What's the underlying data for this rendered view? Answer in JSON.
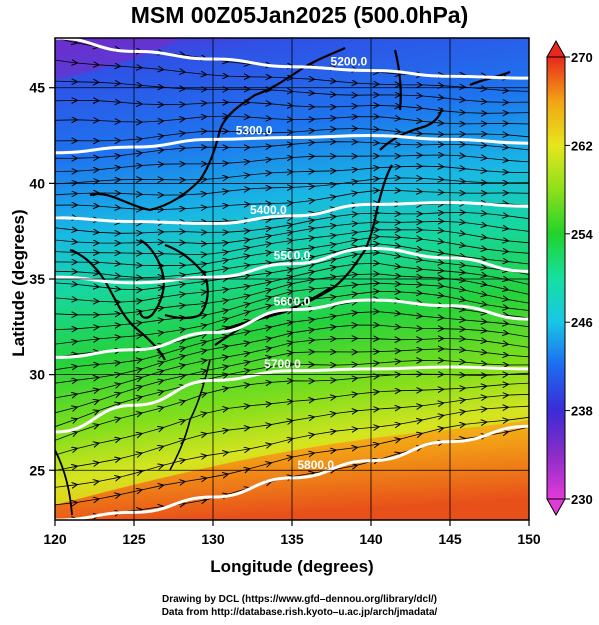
{
  "title": "MSM 00Z05Jan2025 (500.0hPa)",
  "xlabel": "Longitude (degrees)",
  "ylabel": "Latitude  (degrees)",
  "x_ticks": [
    120,
    125,
    130,
    135,
    140,
    145,
    150
  ],
  "y_ticks": [
    25,
    30,
    35,
    40,
    45
  ],
  "xlim": [
    120,
    150
  ],
  "ylim": [
    22.4,
    47.6
  ],
  "colorbar": {
    "ticks": [
      230,
      238,
      246,
      254,
      262,
      270
    ],
    "range": [
      230,
      270
    ],
    "colors": [
      "#e23ad8",
      "#8b2cc8",
      "#3a2cd6",
      "#1e6af0",
      "#18c6e6",
      "#16e0a0",
      "#22d22c",
      "#8ee01a",
      "#e6e61c",
      "#f2a414",
      "#f2541a",
      "#e8281e"
    ]
  },
  "contours": [
    {
      "label": "5200.0",
      "lats": [
        47.6,
        46.9,
        46.5,
        46.1,
        45.9,
        45.6,
        45.5
      ]
    },
    {
      "label": "5300.0",
      "lats": [
        41.6,
        41.9,
        42.3,
        42.4,
        42.5,
        42.3,
        42.1
      ]
    },
    {
      "label": "5400.0",
      "lats": [
        38.2,
        38.0,
        37.9,
        38.3,
        38.9,
        39.0,
        38.8
      ]
    },
    {
      "label": "5500.0",
      "lats": [
        35.1,
        34.8,
        35.1,
        35.8,
        36.6,
        36.1,
        35.4
      ]
    },
    {
      "label": "5600.0",
      "lats": [
        30.9,
        31.3,
        32.2,
        33.4,
        33.9,
        33.6,
        32.9
      ]
    },
    {
      "label": "5700.0",
      "lats": [
        27.0,
        28.4,
        29.7,
        30.2,
        30.3,
        30.4,
        30.3
      ]
    },
    {
      "label": "5800.0",
      "lats": [
        22.4,
        22.8,
        23.6,
        24.6,
        25.5,
        26.5,
        27.3
      ]
    }
  ],
  "credits": [
    "Drawing by DCL (https://www.gfd–dennou.org/library/dcl/)",
    "Data from http://database.rish.kyoto–u.ac.jp/arch/jmadata/"
  ]
}
